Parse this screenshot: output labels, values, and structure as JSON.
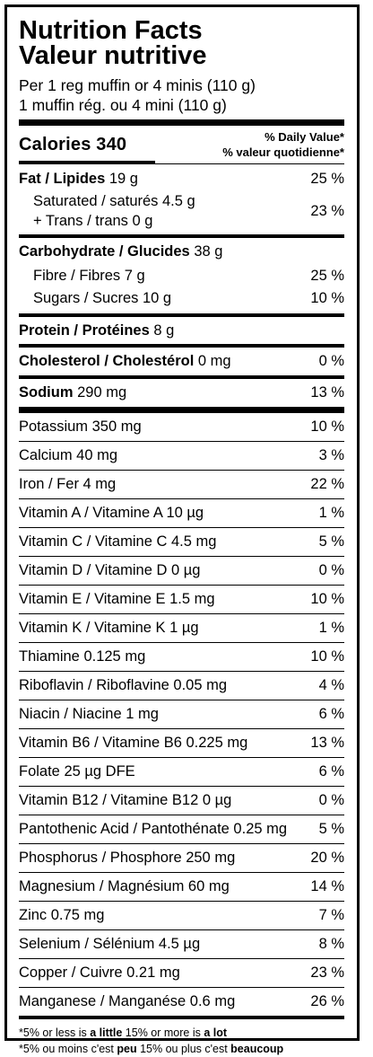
{
  "title_en": "Nutrition Facts",
  "title_fr": "Valeur nutritive",
  "serving_en": "Per 1 reg muffin or 4 minis (110 g)",
  "serving_fr": "1 muffin rég. ou 4 mini (110 g)",
  "calories_label": "Calories 340",
  "dv_header_en": "% Daily Value*",
  "dv_header_fr": "% valeur quotidienne*",
  "fat": {
    "label": "Fat / Lipides",
    "amount": "19 g",
    "dv": "25 %"
  },
  "saturated": {
    "line1": "Saturated / saturés 4.5 g",
    "line2": "+ Trans / trans 0 g",
    "dv": "23 %"
  },
  "carbohydrate": {
    "label": "Carbohydrate / Glucides",
    "amount": "38 g"
  },
  "fibre": {
    "label": "Fibre / Fibres 7 g",
    "dv": "25 %"
  },
  "sugars": {
    "label": "Sugars / Sucres 10 g",
    "dv": "10 %"
  },
  "protein": {
    "label": "Protein / Protéines",
    "amount": "8 g"
  },
  "cholesterol": {
    "label": "Cholesterol / Cholestérol",
    "amount": "0 mg",
    "dv": "0 %"
  },
  "sodium": {
    "label": "Sodium",
    "amount": "290 mg",
    "dv": "13 %"
  },
  "nutrients": [
    {
      "label": "Potassium 350 mg",
      "dv": "10 %"
    },
    {
      "label": "Calcium 40 mg",
      "dv": "3 %"
    },
    {
      "label": "Iron / Fer 4 mg",
      "dv": "22 %"
    },
    {
      "label": "Vitamin A / Vitamine A 10 µg",
      "dv": "1 %"
    },
    {
      "label": "Vitamin C / Vitamine C 4.5 mg",
      "dv": "5 %"
    },
    {
      "label": "Vitamin D / Vitamine D 0 µg",
      "dv": "0 %"
    },
    {
      "label": "Vitamin E / Vitamine E 1.5 mg",
      "dv": "10 %"
    },
    {
      "label": "Vitamin K / Vitamine K 1 µg",
      "dv": "1 %"
    },
    {
      "label": "Thiamine 0.125 mg",
      "dv": "10 %"
    },
    {
      "label": "Riboflavin / Riboflavine 0.05 mg",
      "dv": "4 %"
    },
    {
      "label": "Niacin / Niacine 1 mg",
      "dv": "6 %"
    },
    {
      "label": "Vitamin B6 / Vitamine B6 0.225 mg",
      "dv": "13 %"
    },
    {
      "label": "Folate 25 µg DFE",
      "dv": "6 %"
    },
    {
      "label": "Vitamin B12 / Vitamine B12 0 µg",
      "dv": "0 %"
    },
    {
      "label": "Pantothenic Acid / Pantothénate 0.25 mg",
      "dv": "5 %"
    },
    {
      "label": "Phosphorus / Phosphore 250 mg",
      "dv": "20 %"
    },
    {
      "label": "Magnesium / Magnésium 60 mg",
      "dv": "14 %"
    },
    {
      "label": "Zinc 0.75 mg",
      "dv": "7 %"
    },
    {
      "label": "Selenium / Sélénium 4.5 µg",
      "dv": "8 %"
    },
    {
      "label": "Copper / Cuivre 0.21 mg",
      "dv": "23 %"
    },
    {
      "label": "Manganese / Manganése 0.6 mg",
      "dv": "26 %"
    }
  ],
  "footnote_en": {
    "prefix": "*5% or less is ",
    "little": "a little",
    "mid": " 15% or more is ",
    "lot": "a lot"
  },
  "footnote_fr": {
    "prefix": "*5% ou moins c'est ",
    "little": "peu",
    "mid": " 15% ou plus c'est ",
    "lot": "beaucoup"
  }
}
